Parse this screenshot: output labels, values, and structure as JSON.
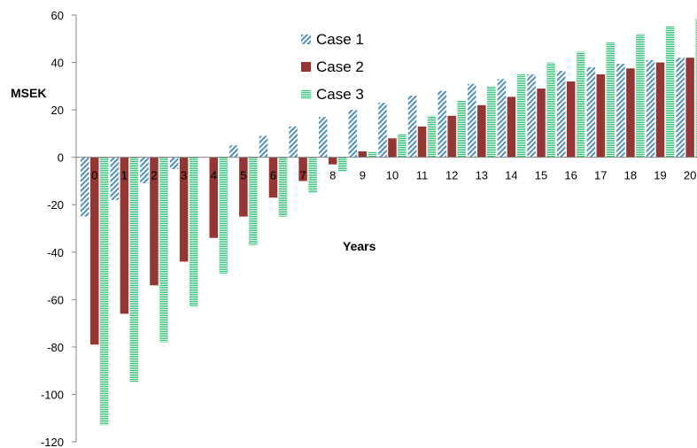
{
  "chart_data": {
    "type": "bar",
    "ylabel": "MSEK",
    "xlabel": "Years",
    "ylim": [
      -120,
      60
    ],
    "yticks": [
      -120,
      -100,
      -80,
      -60,
      -40,
      -20,
      0,
      20,
      40,
      60
    ],
    "categories": [
      "0",
      "1",
      "2",
      "3",
      "4",
      "5",
      "6",
      "7",
      "8",
      "9",
      "10",
      "11",
      "12",
      "13",
      "14",
      "15",
      "16",
      "17",
      "18",
      "19",
      "20"
    ],
    "legend_position": "top-center",
    "series": [
      {
        "name": "Case 1",
        "color": "#4f8fc0",
        "pattern": "diagonal-hatch",
        "values": [
          -25,
          -18,
          -11,
          -5,
          0,
          5,
          9,
          13,
          17,
          20,
          23,
          26,
          28,
          31,
          33,
          35,
          36.5,
          38,
          39.5,
          41,
          42
        ]
      },
      {
        "name": "Case 2",
        "color": "#943634",
        "pattern": "solid",
        "values": [
          -79,
          -66,
          -54,
          -44,
          -34,
          -25,
          -17,
          -10,
          -3,
          2.5,
          8,
          13,
          17.5,
          22,
          25.5,
          29,
          32,
          35,
          37.5,
          40,
          42
        ]
      },
      {
        "name": "Case 3",
        "color": "#3cc47e",
        "pattern": "horizontal-stripes",
        "values": [
          -113,
          -95,
          -78,
          -63,
          -49,
          -37,
          -25,
          -15,
          -6,
          2.5,
          10,
          17.5,
          24,
          30,
          35,
          40,
          44.5,
          48.5,
          52,
          55.5,
          58.5
        ]
      }
    ]
  }
}
